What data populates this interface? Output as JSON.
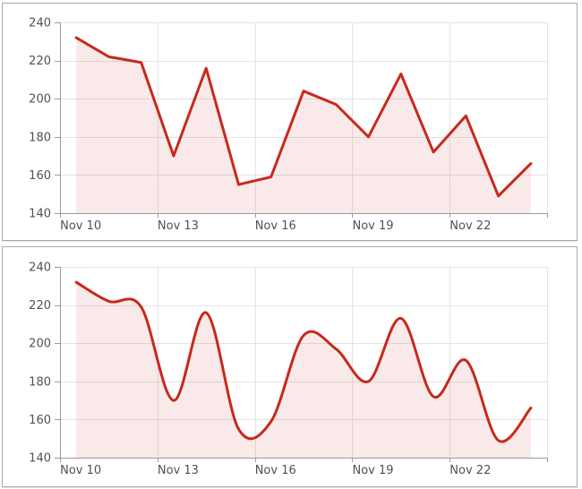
{
  "page": {
    "background": "#ffffff",
    "panel_border_color": "#a9a9a9"
  },
  "theme": {
    "line_color": "#c52a1d",
    "fill_color": "rgba(197,42,29,0.10)",
    "grid_color": "#e4e4e4",
    "axis_color": "#9b9b9b",
    "label_color": "#4e5256"
  },
  "chart_data": [
    {
      "type": "area",
      "title": "",
      "xlabel": "",
      "ylabel": "",
      "smooth": false,
      "grid": true,
      "legend": "none",
      "x": [
        "Nov 10",
        "Nov 11",
        "Nov 12",
        "Nov 13",
        "Nov 14",
        "Nov 15",
        "Nov 16",
        "Nov 17",
        "Nov 18",
        "Nov 19",
        "Nov 20",
        "Nov 21",
        "Nov 22",
        "Nov 23",
        "Nov 24"
      ],
      "values": [
        232,
        222,
        219,
        170,
        216,
        155,
        159,
        204,
        197,
        180,
        213,
        172,
        191,
        149,
        166
      ],
      "ylim": [
        140,
        240
      ],
      "yticks": [
        140,
        160,
        180,
        200,
        220,
        240
      ],
      "xtick_labels": [
        "Nov 10",
        "Nov 13",
        "Nov 16",
        "Nov 19",
        "Nov 22"
      ],
      "xtick_indices": [
        0,
        3,
        6,
        9,
        12
      ]
    },
    {
      "type": "areaspline",
      "title": "",
      "xlabel": "",
      "ylabel": "",
      "smooth": true,
      "grid": true,
      "legend": "none",
      "x": [
        "Nov 10",
        "Nov 11",
        "Nov 12",
        "Nov 13",
        "Nov 14",
        "Nov 15",
        "Nov 16",
        "Nov 17",
        "Nov 18",
        "Nov 19",
        "Nov 20",
        "Nov 21",
        "Nov 22",
        "Nov 23",
        "Nov 24"
      ],
      "values": [
        232,
        222,
        219,
        170,
        216,
        155,
        159,
        204,
        197,
        180,
        213,
        172,
        191,
        149,
        166
      ],
      "ylim": [
        140,
        240
      ],
      "yticks": [
        140,
        160,
        180,
        200,
        220,
        240
      ],
      "xtick_labels": [
        "Nov 10",
        "Nov 13",
        "Nov 16",
        "Nov 19",
        "Nov 22"
      ],
      "xtick_indices": [
        0,
        3,
        6,
        9,
        12
      ]
    }
  ]
}
